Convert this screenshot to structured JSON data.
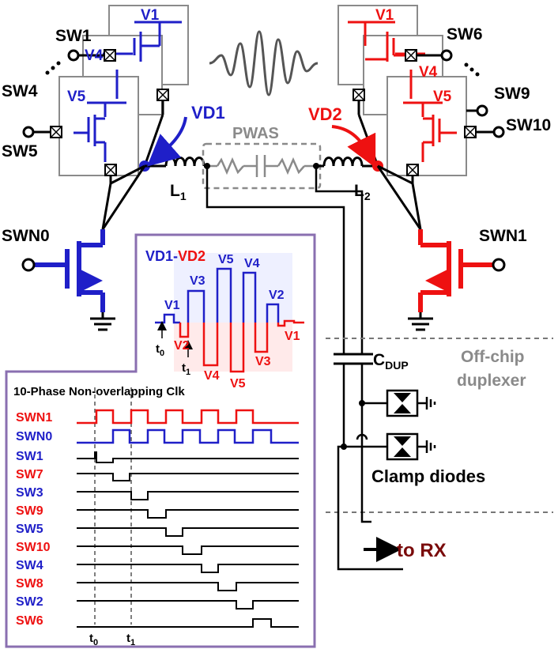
{
  "colors": {
    "blue": "#1f1fc8",
    "red": "#ee1111",
    "black": "#000000",
    "gray": "#8a8a8a",
    "purple": "#8a6fb0",
    "dark_red": "#7a0b0b"
  },
  "labels": {
    "sw1": "SW1",
    "sw4": "SW4",
    "sw5": "SW5",
    "sw6": "SW6",
    "sw9": "SW9",
    "sw10": "SW10",
    "swn0": "SWN0",
    "swn1": "SWN1",
    "vd1": "VD1",
    "vd2": "VD2",
    "pwas": "PWAS",
    "l1": "L",
    "l1_sub": "1",
    "l2": "L",
    "l2_sub": "2",
    "left_box_v1": "V1",
    "left_box_v4": "V4",
    "left_box_v5": "V5",
    "right_box_v1": "V1",
    "right_box_v4": "V4",
    "right_box_v5": "V5",
    "cdup": "C",
    "cdup_sub": "DUP",
    "offchip_line1": "Off-chip",
    "offchip_line2": "duplexer",
    "clamp": "Clamp diodes",
    "to_rx": "to RX"
  },
  "waveform": {
    "title_left": "VD1",
    "title_sep": "-",
    "title_right": "VD2",
    "upper_levels": [
      "V1",
      "V3",
      "V5",
      "V4",
      "V2"
    ],
    "lower_levels": [
      "V2",
      "V4",
      "V5",
      "V3",
      "V1"
    ],
    "t0": "t",
    "t0_sub": "0",
    "t1": "t",
    "t1_sub": "1"
  },
  "timing": {
    "title": "10-Phase Non-overlapping Clk",
    "signals": [
      {
        "name": "SWN1",
        "color": "red"
      },
      {
        "name": "SWN0",
        "color": "blue"
      },
      {
        "name": "SW1",
        "color": "blue"
      },
      {
        "name": "SW7",
        "color": "red"
      },
      {
        "name": "SW3",
        "color": "blue"
      },
      {
        "name": "SW9",
        "color": "red"
      },
      {
        "name": "SW5",
        "color": "blue"
      },
      {
        "name": "SW10",
        "color": "red"
      },
      {
        "name": "SW4",
        "color": "blue"
      },
      {
        "name": "SW8",
        "color": "red"
      },
      {
        "name": "SW2",
        "color": "blue"
      },
      {
        "name": "SW6",
        "color": "red"
      }
    ],
    "t0": "t",
    "t0_sub": "0",
    "t1": "t",
    "t1_sub": "1"
  }
}
